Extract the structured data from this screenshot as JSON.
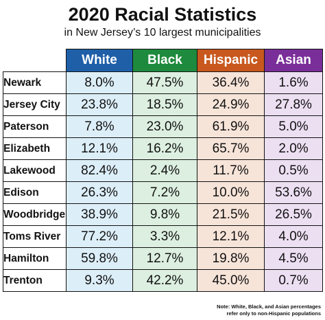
{
  "title": "2020 Racial Statistics",
  "subtitle": "in New Jersey’s 10 largest municipalities",
  "note": {
    "line1": "Note: White, Black, and Asian percentages",
    "line2": "refer only to non-Hispanic populations"
  },
  "colors": {
    "header": [
      "#1f5fa8",
      "#1e8a3d",
      "#c8581e",
      "#7a2e99"
    ],
    "cell": [
      "#dceef8",
      "#dcefe0",
      "#f7e4d9",
      "#ecdff2"
    ]
  },
  "chart_data": {
    "type": "table",
    "title": "2020 Racial Statistics",
    "subtitle": "in New Jersey’s 10 largest municipalities",
    "columns": [
      "White",
      "Black",
      "Hispanic",
      "Asian"
    ],
    "rows": [
      {
        "name": "Newark",
        "values": [
          "8.0%",
          "47.5%",
          "36.4%",
          "1.6%"
        ]
      },
      {
        "name": "Jersey City",
        "values": [
          "23.8%",
          "18.5%",
          "24.9%",
          "27.8%"
        ]
      },
      {
        "name": "Paterson",
        "values": [
          "7.8%",
          "23.0%",
          "61.9%",
          "5.0%"
        ]
      },
      {
        "name": "Elizabeth",
        "values": [
          "12.1%",
          "16.2%",
          "65.7%",
          "2.0%"
        ]
      },
      {
        "name": "Lakewood",
        "values": [
          "82.4%",
          "2.4%",
          "11.7%",
          "0.5%"
        ]
      },
      {
        "name": "Edison",
        "values": [
          "26.3%",
          "7.2%",
          "10.0%",
          "53.6%"
        ]
      },
      {
        "name": "Woodbridge",
        "values": [
          "38.9%",
          "9.8%",
          "21.5%",
          "26.5%"
        ]
      },
      {
        "name": "Toms River",
        "values": [
          "77.2%",
          "3.3%",
          "12.1%",
          "4.0%"
        ]
      },
      {
        "name": "Hamilton",
        "values": [
          "59.8%",
          "12.7%",
          "19.8%",
          "4.5%"
        ]
      },
      {
        "name": "Trenton",
        "values": [
          "9.3%",
          "42.2%",
          "45.0%",
          "0.7%"
        ]
      }
    ]
  }
}
